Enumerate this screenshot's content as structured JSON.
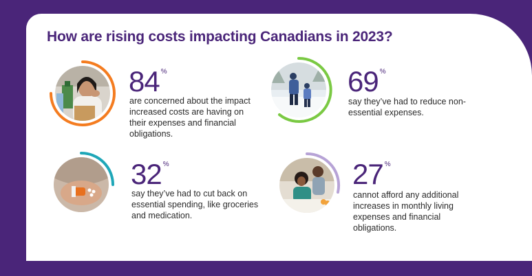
{
  "title": "How are rising costs impacting Canadians in 2023?",
  "stats": [
    {
      "value": "84",
      "unit": "%",
      "description": "are concerned about the impact increased costs are having on their expenses and financial obligations.",
      "ring_color": "#f47c20",
      "icon": "woman-stressed-photo"
    },
    {
      "value": "69",
      "unit": "%",
      "description": "say they’ve had to reduce non-essential expenses.",
      "ring_color": "#7ac943",
      "icon": "family-skating-photo"
    },
    {
      "value": "32",
      "unit": "%",
      "description": "say they’ve had to cut back on essential spending, like groceries and medication.",
      "ring_color": "#1fa7b8",
      "icon": "pills-hand-photo"
    },
    {
      "value": "27",
      "unit": "%",
      "description": "cannot afford any additional increases in monthly living expenses and financial obligations.",
      "ring_color": "#b7a3d6",
      "icon": "couple-bills-photo"
    }
  ]
}
